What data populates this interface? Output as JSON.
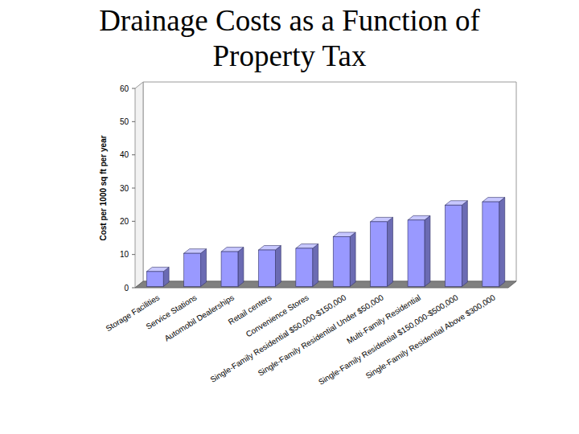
{
  "chart_data": {
    "type": "bar",
    "title": "Drainage Costs as a Function of Property Tax",
    "y_label": "Cost per 1000 sq ft per year",
    "categories": [
      "Storage Facilities",
      "Service Stations",
      "Automobil Dealerships",
      "Retail centers",
      "Convenience Stores",
      "Single-Family Residential $50,000-$150,000",
      "Single-Family Residential Under $50,000",
      "Multi-Family Residential",
      "Single-Family Residential $150,000-$500,000",
      "Single-Family Residential Above $300,000"
    ],
    "values": [
      4.5,
      10,
      10.5,
      11,
      11.5,
      15,
      19.5,
      20,
      24.5,
      25.5
    ],
    "color": "#9999ff",
    "ylim": [
      0,
      60
    ],
    "yticks": [
      0,
      10,
      20,
      30,
      40,
      50,
      60
    ],
    "grid": false
  }
}
